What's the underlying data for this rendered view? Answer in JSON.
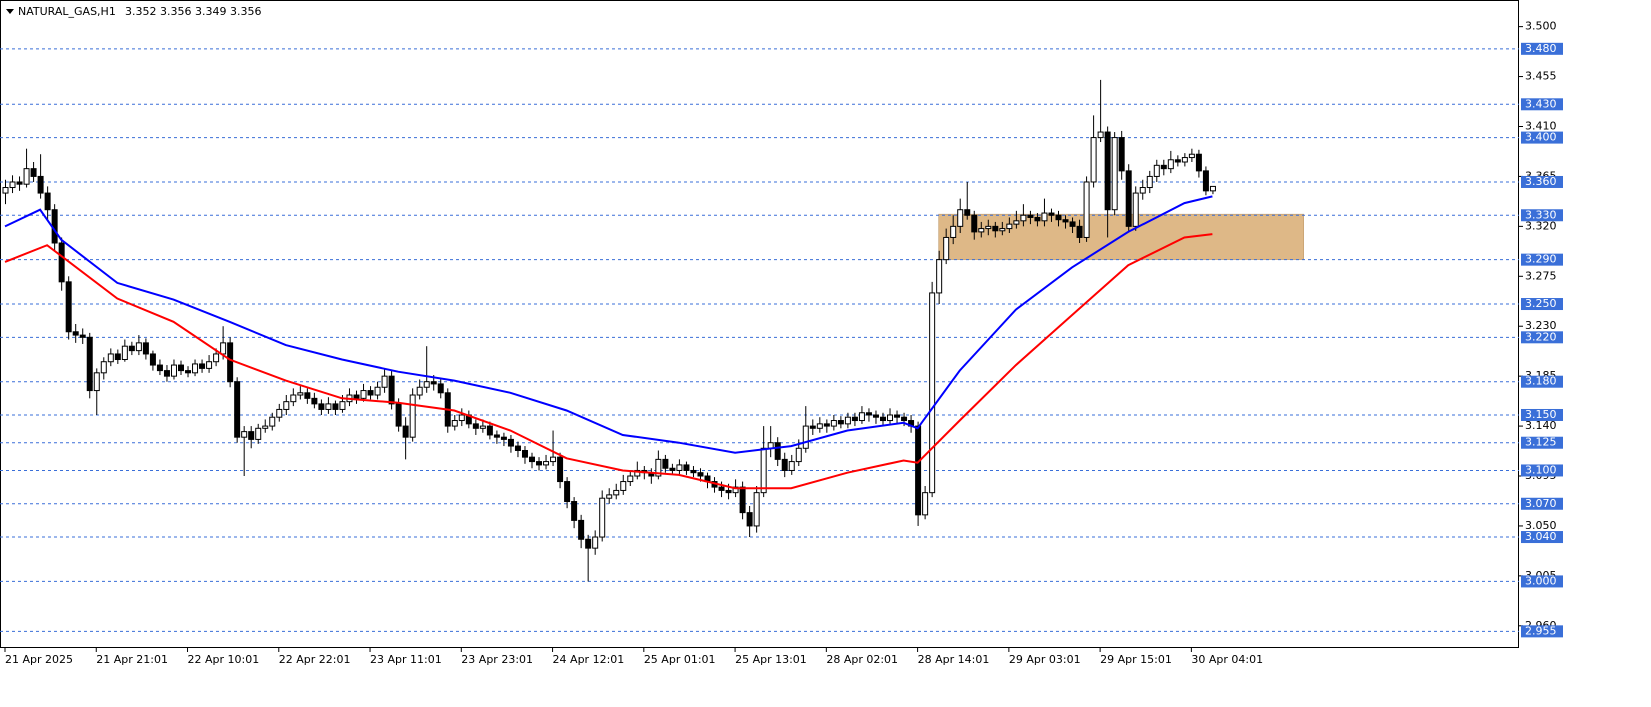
{
  "chart_data": {
    "type": "candlestick",
    "title": "NATURAL_GAS,H1",
    "ohlc_header": "3.352 3.356 3.349 3.356",
    "categories": [
      "21 Apr 2025",
      null,
      null,
      null,
      null,
      null,
      null,
      null,
      null,
      null,
      null,
      null,
      null,
      "21 Apr 21:01",
      null,
      null,
      null,
      null,
      null,
      null,
      null,
      null,
      null,
      null,
      null,
      null,
      "22 Apr 10:01",
      null,
      null,
      null,
      null,
      null,
      null,
      null,
      null,
      null,
      null,
      null,
      null,
      "22 Apr 22:01",
      null,
      null,
      null,
      null,
      null,
      null,
      null,
      null,
      null,
      null,
      null,
      null,
      "23 Apr 11:01",
      null,
      null,
      null,
      null,
      null,
      null,
      null,
      null,
      null,
      null,
      null,
      null,
      "23 Apr 23:01",
      null,
      null,
      null,
      null,
      null,
      null,
      null,
      null,
      null,
      null,
      null,
      null,
      "24 Apr 12:01",
      null,
      null,
      null,
      null,
      null,
      null,
      null,
      null,
      null,
      null,
      null,
      null,
      "25 Apr 01:01",
      null,
      null,
      null,
      null,
      null,
      null,
      null,
      null,
      null,
      null,
      null,
      null,
      "25 Apr 13:01",
      null,
      null,
      null,
      null,
      null,
      null,
      null,
      null,
      null,
      null,
      null,
      null,
      "28 Apr 02:01",
      null,
      null,
      null,
      null,
      null,
      null,
      null,
      null,
      null,
      null,
      null,
      null,
      "28 Apr 14:01",
      null,
      null,
      null,
      null,
      null,
      null,
      null,
      null,
      null,
      null,
      null,
      null,
      "29 Apr 03:01",
      null,
      null,
      null,
      null,
      null,
      null,
      null,
      null,
      null,
      null,
      null,
      null,
      "29 Apr 15:01",
      null,
      null,
      null,
      null,
      null,
      null,
      null,
      null,
      null,
      null,
      null,
      null,
      "30 Apr 04:01",
      null,
      null,
      null
    ],
    "ohlc": [
      [
        3.35,
        3.362,
        3.34,
        3.355
      ],
      [
        3.355,
        3.366,
        3.35,
        3.36
      ],
      [
        3.36,
        3.365,
        3.352,
        3.358
      ],
      [
        3.358,
        3.39,
        3.355,
        3.372
      ],
      [
        3.372,
        3.378,
        3.36,
        3.365
      ],
      [
        3.365,
        3.385,
        3.345,
        3.35
      ],
      [
        3.35,
        3.356,
        3.325,
        3.335
      ],
      [
        3.335,
        3.34,
        3.298,
        3.305
      ],
      [
        3.305,
        3.31,
        3.262,
        3.27
      ],
      [
        3.27,
        3.275,
        3.218,
        3.225
      ],
      [
        3.225,
        3.232,
        3.215,
        3.222
      ],
      [
        3.222,
        3.228,
        3.214,
        3.22
      ],
      [
        3.22,
        3.224,
        3.165,
        3.172
      ],
      [
        3.172,
        3.192,
        3.15,
        3.188
      ],
      [
        3.188,
        3.202,
        3.182,
        3.198
      ],
      [
        3.198,
        3.21,
        3.194,
        3.205
      ],
      [
        3.205,
        3.209,
        3.196,
        3.2
      ],
      [
        3.2,
        3.218,
        3.198,
        3.212
      ],
      [
        3.212,
        3.216,
        3.204,
        3.208
      ],
      [
        3.208,
        3.222,
        3.204,
        3.215
      ],
      [
        3.215,
        3.219,
        3.2,
        3.205
      ],
      [
        3.205,
        3.208,
        3.19,
        3.195
      ],
      [
        3.195,
        3.2,
        3.186,
        3.19
      ],
      [
        3.19,
        3.195,
        3.18,
        3.185
      ],
      [
        3.185,
        3.2,
        3.182,
        3.195
      ],
      [
        3.195,
        3.199,
        3.186,
        3.19
      ],
      [
        3.19,
        3.194,
        3.184,
        3.188
      ],
      [
        3.188,
        3.2,
        3.185,
        3.196
      ],
      [
        3.196,
        3.2,
        3.188,
        3.192
      ],
      [
        3.192,
        3.204,
        3.188,
        3.198
      ],
      [
        3.198,
        3.21,
        3.194,
        3.205
      ],
      [
        3.205,
        3.23,
        3.2,
        3.215
      ],
      [
        3.215,
        3.22,
        3.175,
        3.18
      ],
      [
        3.18,
        3.184,
        3.125,
        3.13
      ],
      [
        3.13,
        3.14,
        3.095,
        3.135
      ],
      [
        3.135,
        3.14,
        3.12,
        3.128
      ],
      [
        3.128,
        3.142,
        3.124,
        3.138
      ],
      [
        3.138,
        3.146,
        3.134,
        3.14
      ],
      [
        3.14,
        3.152,
        3.136,
        3.148
      ],
      [
        3.148,
        3.16,
        3.144,
        3.155
      ],
      [
        3.155,
        3.168,
        3.15,
        3.162
      ],
      [
        3.162,
        3.174,
        3.158,
        3.168
      ],
      [
        3.168,
        3.176,
        3.164,
        3.17
      ],
      [
        3.17,
        3.174,
        3.16,
        3.165
      ],
      [
        3.165,
        3.17,
        3.156,
        3.16
      ],
      [
        3.16,
        3.164,
        3.15,
        3.155
      ],
      [
        3.155,
        3.166,
        3.151,
        3.16
      ],
      [
        3.16,
        3.163,
        3.15,
        3.155
      ],
      [
        3.155,
        3.168,
        3.152,
        3.162
      ],
      [
        3.162,
        3.174,
        3.158,
        3.168
      ],
      [
        3.168,
        3.172,
        3.16,
        3.165
      ],
      [
        3.165,
        3.178,
        3.162,
        3.172
      ],
      [
        3.172,
        3.176,
        3.164,
        3.168
      ],
      [
        3.168,
        3.18,
        3.164,
        3.175
      ],
      [
        3.175,
        3.192,
        3.17,
        3.185
      ],
      [
        3.185,
        3.19,
        3.155,
        3.16
      ],
      [
        3.16,
        3.165,
        3.135,
        3.14
      ],
      [
        3.14,
        3.148,
        3.11,
        3.13
      ],
      [
        3.13,
        3.174,
        3.126,
        3.168
      ],
      [
        3.168,
        3.182,
        3.164,
        3.175
      ],
      [
        3.175,
        3.212,
        3.17,
        3.18
      ],
      [
        3.18,
        3.186,
        3.172,
        3.178
      ],
      [
        3.178,
        3.182,
        3.165,
        3.17
      ],
      [
        3.17,
        3.174,
        3.134,
        3.14
      ],
      [
        3.14,
        3.15,
        3.136,
        3.145
      ],
      [
        3.145,
        3.156,
        3.14,
        3.15
      ],
      [
        3.15,
        3.154,
        3.138,
        3.142
      ],
      [
        3.142,
        3.146,
        3.132,
        3.138
      ],
      [
        3.138,
        3.146,
        3.134,
        3.14
      ],
      [
        3.14,
        3.144,
        3.128,
        3.132
      ],
      [
        3.132,
        3.136,
        3.124,
        3.13
      ],
      [
        3.13,
        3.134,
        3.122,
        3.128
      ],
      [
        3.128,
        3.132,
        3.116,
        3.122
      ],
      [
        3.122,
        3.126,
        3.112,
        3.118
      ],
      [
        3.118,
        3.122,
        3.106,
        3.112
      ],
      [
        3.112,
        3.116,
        3.102,
        3.108
      ],
      [
        3.108,
        3.112,
        3.1,
        3.105
      ],
      [
        3.105,
        3.114,
        3.101,
        3.108
      ],
      [
        3.108,
        3.136,
        3.104,
        3.112
      ],
      [
        3.112,
        3.116,
        3.084,
        3.09
      ],
      [
        3.09,
        3.094,
        3.066,
        3.072
      ],
      [
        3.072,
        3.076,
        3.048,
        3.055
      ],
      [
        3.055,
        3.06,
        3.03,
        3.038
      ],
      [
        3.038,
        3.042,
        3.0,
        3.03
      ],
      [
        3.03,
        3.046,
        3.024,
        3.04
      ],
      [
        3.04,
        3.082,
        3.036,
        3.075
      ],
      [
        3.075,
        3.084,
        3.07,
        3.078
      ],
      [
        3.078,
        3.088,
        3.074,
        3.082
      ],
      [
        3.082,
        3.096,
        3.078,
        3.09
      ],
      [
        3.09,
        3.1,
        3.086,
        3.095
      ],
      [
        3.095,
        3.108,
        3.092,
        3.1
      ],
      [
        3.1,
        3.104,
        3.092,
        3.098
      ],
      [
        3.098,
        3.102,
        3.088,
        3.095
      ],
      [
        3.095,
        3.118,
        3.092,
        3.11
      ],
      [
        3.11,
        3.114,
        3.098,
        3.102
      ],
      [
        3.102,
        3.106,
        3.096,
        3.1
      ],
      [
        3.1,
        3.11,
        3.096,
        3.105
      ],
      [
        3.105,
        3.108,
        3.096,
        3.1
      ],
      [
        3.1,
        3.104,
        3.094,
        3.098
      ],
      [
        3.098,
        3.102,
        3.09,
        3.095
      ],
      [
        3.095,
        3.098,
        3.084,
        3.09
      ],
      [
        3.09,
        3.094,
        3.08,
        3.085
      ],
      [
        3.085,
        3.09,
        3.076,
        3.082
      ],
      [
        3.082,
        3.088,
        3.074,
        3.08
      ],
      [
        3.08,
        3.092,
        3.076,
        3.085
      ],
      [
        3.085,
        3.09,
        3.056,
        3.062
      ],
      [
        3.062,
        3.068,
        3.04,
        3.05
      ],
      [
        3.05,
        3.086,
        3.044,
        3.08
      ],
      [
        3.08,
        3.14,
        3.076,
        3.12
      ],
      [
        3.12,
        3.14,
        3.112,
        3.125
      ],
      [
        3.125,
        3.13,
        3.104,
        3.11
      ],
      [
        3.11,
        3.116,
        3.094,
        3.1
      ],
      [
        3.1,
        3.114,
        3.096,
        3.108
      ],
      [
        3.108,
        3.128,
        3.104,
        3.12
      ],
      [
        3.12,
        3.158,
        3.116,
        3.14
      ],
      [
        3.14,
        3.146,
        3.132,
        3.138
      ],
      [
        3.138,
        3.148,
        3.134,
        3.142
      ],
      [
        3.142,
        3.146,
        3.134,
        3.14
      ],
      [
        3.14,
        3.15,
        3.136,
        3.145
      ],
      [
        3.145,
        3.149,
        3.138,
        3.142
      ],
      [
        3.142,
        3.152,
        3.138,
        3.148
      ],
      [
        3.148,
        3.152,
        3.14,
        3.145
      ],
      [
        3.145,
        3.158,
        3.142,
        3.152
      ],
      [
        3.152,
        3.156,
        3.144,
        3.15
      ],
      [
        3.15,
        3.154,
        3.142,
        3.148
      ],
      [
        3.148,
        3.152,
        3.14,
        3.145
      ],
      [
        3.145,
        3.156,
        3.142,
        3.15
      ],
      [
        3.15,
        3.154,
        3.142,
        3.148
      ],
      [
        3.148,
        3.152,
        3.14,
        3.145
      ],
      [
        3.145,
        3.15,
        3.134,
        3.14
      ],
      [
        3.14,
        3.144,
        3.05,
        3.06
      ],
      [
        3.06,
        3.086,
        3.056,
        3.08
      ],
      [
        3.08,
        3.27,
        3.076,
        3.26
      ],
      [
        3.26,
        3.298,
        3.25,
        3.29
      ],
      [
        3.29,
        3.318,
        3.286,
        3.31
      ],
      [
        3.31,
        3.33,
        3.304,
        3.32
      ],
      [
        3.32,
        3.345,
        3.314,
        3.335
      ],
      [
        3.335,
        3.36,
        3.326,
        3.33
      ],
      [
        3.33,
        3.334,
        3.308,
        3.315
      ],
      [
        3.315,
        3.324,
        3.31,
        3.318
      ],
      [
        3.318,
        3.326,
        3.312,
        3.32
      ],
      [
        3.32,
        3.324,
        3.31,
        3.316
      ],
      [
        3.316,
        3.324,
        3.312,
        3.318
      ],
      [
        3.318,
        3.328,
        3.314,
        3.322
      ],
      [
        3.322,
        3.334,
        3.318,
        3.325
      ],
      [
        3.325,
        3.34,
        3.32,
        3.33
      ],
      [
        3.33,
        3.334,
        3.322,
        3.328
      ],
      [
        3.328,
        3.332,
        3.32,
        3.325
      ],
      [
        3.325,
        3.345,
        3.32,
        3.332
      ],
      [
        3.332,
        3.336,
        3.324,
        3.33
      ],
      [
        3.33,
        3.334,
        3.32,
        3.326
      ],
      [
        3.326,
        3.33,
        3.318,
        3.324
      ],
      [
        3.324,
        3.328,
        3.314,
        3.32
      ],
      [
        3.32,
        3.326,
        3.305,
        3.31
      ],
      [
        3.31,
        3.365,
        3.306,
        3.36
      ],
      [
        3.36,
        3.42,
        3.355,
        3.4
      ],
      [
        3.4,
        3.452,
        3.396,
        3.405
      ],
      [
        3.405,
        3.41,
        3.31,
        3.335
      ],
      [
        3.335,
        3.405,
        3.33,
        3.4
      ],
      [
        3.4,
        3.406,
        3.362,
        3.37
      ],
      [
        3.37,
        3.376,
        3.316,
        3.32
      ],
      [
        3.32,
        3.356,
        3.316,
        3.35
      ],
      [
        3.35,
        3.362,
        3.344,
        3.355
      ],
      [
        3.355,
        3.37,
        3.35,
        3.365
      ],
      [
        3.365,
        3.38,
        3.36,
        3.375
      ],
      [
        3.375,
        3.38,
        3.366,
        3.372
      ],
      [
        3.372,
        3.388,
        3.368,
        3.38
      ],
      [
        3.38,
        3.384,
        3.374,
        3.378
      ],
      [
        3.378,
        3.386,
        3.374,
        3.382
      ],
      [
        3.382,
        3.39,
        3.378,
        3.385
      ],
      [
        3.385,
        3.389,
        3.364,
        3.37
      ],
      [
        3.37,
        3.374,
        3.348,
        3.352
      ],
      [
        3.352,
        3.356,
        3.349,
        3.356
      ]
    ],
    "lines": [
      {
        "color": "#0000ff",
        "x": [
          0,
          5,
          8,
          16,
          24,
          32,
          40,
          48,
          56,
          64,
          72,
          80,
          88,
          96,
          104,
          112,
          120,
          128,
          130,
          136,
          144,
          152,
          160,
          168,
          172
        ],
        "values": [
          3.32,
          3.335,
          3.308,
          3.269,
          3.254,
          3.234,
          3.213,
          3.2,
          3.189,
          3.181,
          3.17,
          3.154,
          3.132,
          3.125,
          3.116,
          3.122,
          3.136,
          3.143,
          3.138,
          3.19,
          3.245,
          3.283,
          3.315,
          3.341,
          3.347
        ]
      },
      {
        "color": "#ff0000",
        "x": [
          0,
          6,
          16,
          24,
          32,
          40,
          48,
          56,
          64,
          72,
          80,
          88,
          96,
          104,
          112,
          120,
          128,
          130,
          136,
          144,
          152,
          160,
          168,
          172
        ],
        "values": [
          3.288,
          3.303,
          3.255,
          3.234,
          3.2,
          3.181,
          3.165,
          3.161,
          3.154,
          3.136,
          3.111,
          3.1,
          3.096,
          3.084,
          3.084,
          3.098,
          3.109,
          3.107,
          3.145,
          3.195,
          3.24,
          3.285,
          3.31,
          3.313
        ]
      }
    ],
    "zone": {
      "low": 3.29,
      "high": 3.331,
      "start": 133,
      "end": 185,
      "color": "#deb887"
    },
    "levels": [
      {
        "value": 3.48,
        "label": "3.480"
      },
      {
        "value": 3.43,
        "label": "3.430"
      },
      {
        "value": 3.4,
        "label": "3.400"
      },
      {
        "value": 3.36,
        "label": "3.360"
      },
      {
        "value": 3.33,
        "label": "3.330"
      },
      {
        "value": 3.29,
        "label": "3.290"
      },
      {
        "value": 3.25,
        "label": "3.250"
      },
      {
        "value": 3.22,
        "label": "3.220"
      },
      {
        "value": 3.18,
        "label": "3.180"
      },
      {
        "value": 3.15,
        "label": "3.150"
      },
      {
        "value": 3.125,
        "label": "3.125"
      },
      {
        "value": 3.1,
        "label": "3.100"
      },
      {
        "value": 3.07,
        "label": "3.070"
      },
      {
        "value": 3.04,
        "label": "3.040"
      },
      {
        "value": 3.0,
        "label": "3.000"
      },
      {
        "value": 2.955,
        "label": "2.955"
      }
    ],
    "level_color": "#3a6fd8",
    "ylim": [
      2.94,
      3.524
    ],
    "yticks": [
      {
        "value": 3.5,
        "label": "3.500"
      },
      {
        "value": 3.455,
        "label": "3.455"
      },
      {
        "value": 3.41,
        "label": "3.410"
      },
      {
        "value": 3.365,
        "label": "3.365"
      },
      {
        "value": 3.32,
        "label": "3.320"
      },
      {
        "value": 3.275,
        "label": "3.275"
      },
      {
        "value": 3.23,
        "label": "3.230"
      },
      {
        "value": 3.185,
        "label": "3.185"
      },
      {
        "value": 3.14,
        "label": "3.140"
      },
      {
        "value": 3.095,
        "label": "3.095"
      },
      {
        "value": 3.05,
        "label": "3.050"
      },
      {
        "value": 3.005,
        "label": "3.005"
      },
      {
        "value": 2.96,
        "label": "2.960"
      }
    ]
  }
}
